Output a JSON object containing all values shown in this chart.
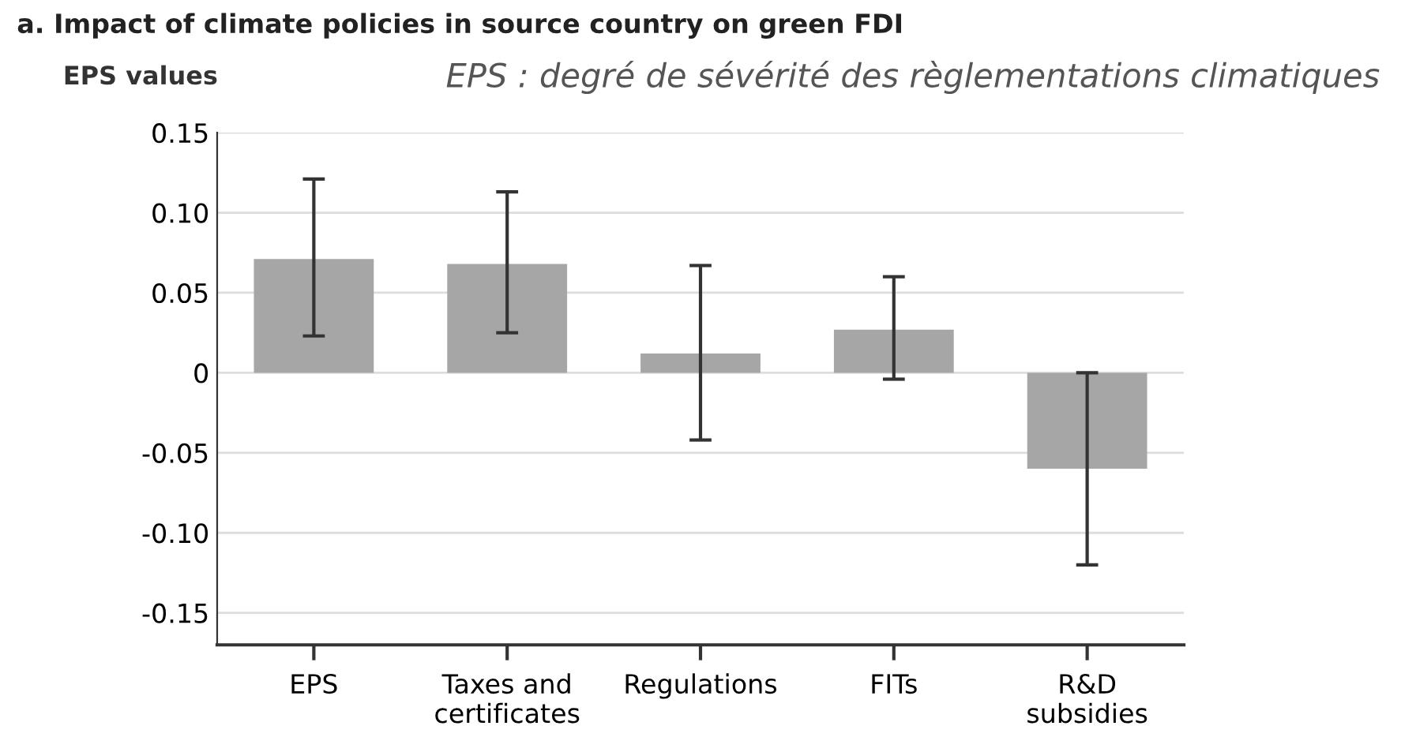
{
  "chart_data": {
    "type": "bar",
    "title": "a. Impact of climate policies in source country on green FDI",
    "ylabel": "EPS values",
    "annotations": [
      "EPS : degré de sévérité des règlementations climatiques"
    ],
    "categories": [
      "EPS",
      "Taxes and\ncertificates",
      "Regulations",
      "FITs",
      "R&D\nsubsidies"
    ],
    "values": [
      0.071,
      0.068,
      0.012,
      0.027,
      -0.06
    ],
    "errors": [
      [
        0.023,
        0.121
      ],
      [
        0.025,
        0.113
      ],
      [
        -0.042,
        0.067
      ],
      [
        -0.004,
        0.06
      ],
      [
        -0.12,
        0.0
      ]
    ],
    "color": "#a6a6a6",
    "ylim": [
      -0.17,
      0.15
    ],
    "yticks": [
      {
        "value": -0.15,
        "label": "-0.15"
      },
      {
        "value": -0.1,
        "label": "-0.10"
      },
      {
        "value": -0.05,
        "label": "-0.05"
      },
      0,
      0.05,
      {
        "value": 0.1,
        "label": "0.10"
      },
      0.15
    ],
    "grid": "y"
  }
}
